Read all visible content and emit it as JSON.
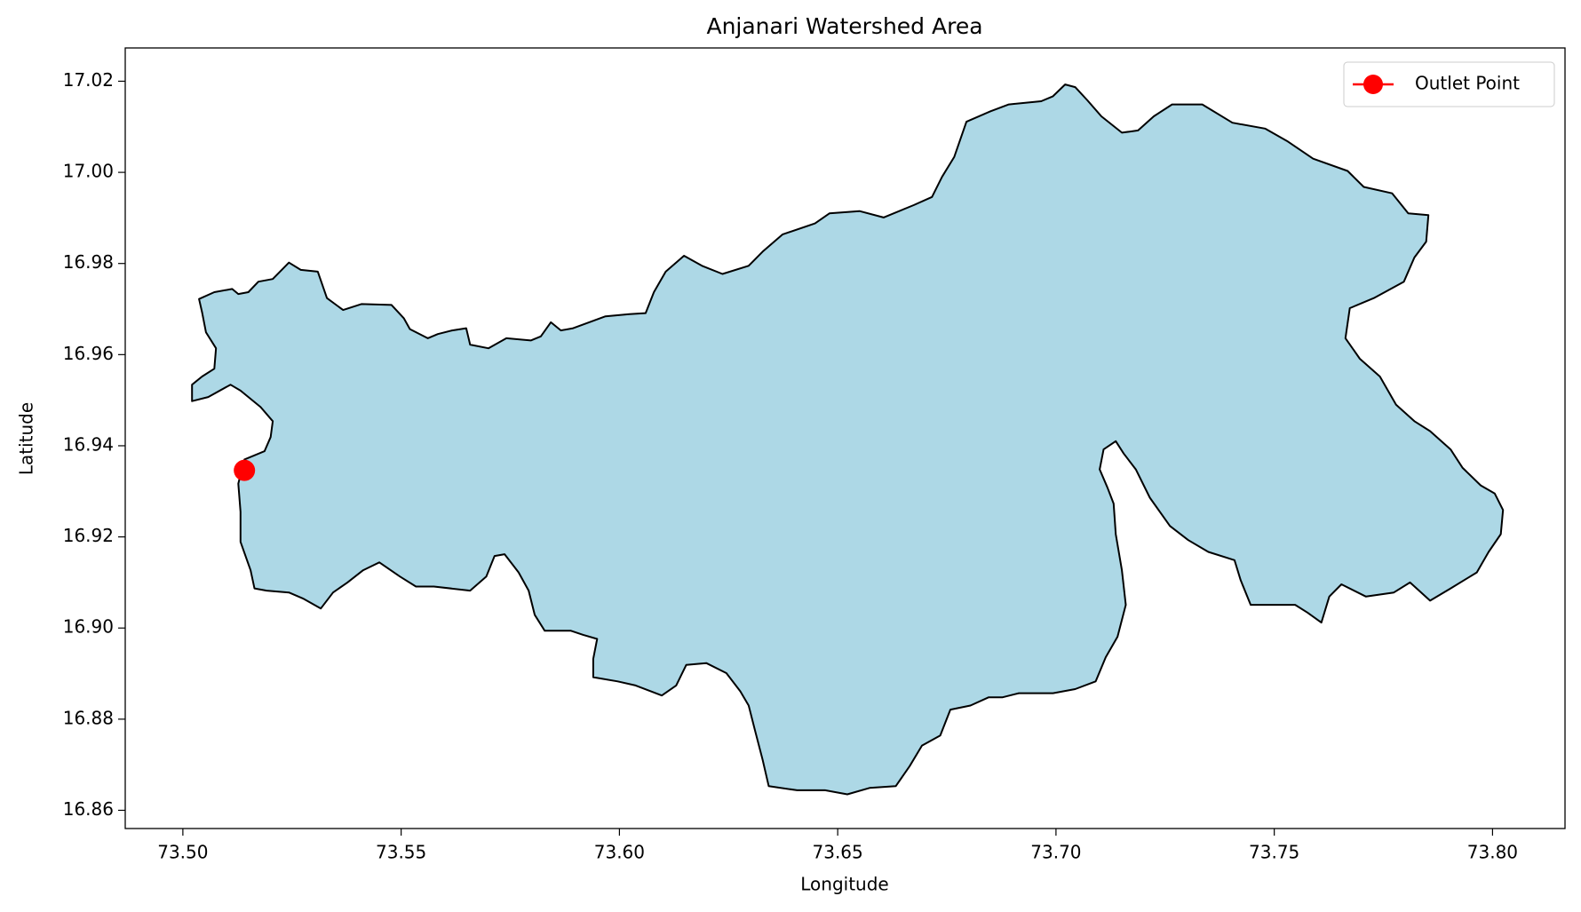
{
  "chart_data": {
    "type": "map",
    "title": "Anjanari Watershed Area",
    "xlabel": "Longitude",
    "ylabel": "Latitude",
    "xlim": [
      73.4868,
      73.8166
    ],
    "ylim": [
      16.856,
      17.0273
    ],
    "xticks": [
      {
        "value": 73.5,
        "label": "73.50"
      },
      73.55,
      {
        "value": 73.6,
        "label": "73.60"
      },
      73.65,
      {
        "value": 73.7,
        "label": "73.70"
      },
      73.75,
      {
        "value": 73.8,
        "label": "73.80"
      }
    ],
    "yticks": [
      16.86,
      16.88,
      {
        "value": 16.9,
        "label": "16.90"
      },
      16.92,
      16.94,
      16.96,
      16.98,
      {
        "value": 17.0,
        "label": "17.00"
      },
      17.02
    ],
    "grid": false,
    "legend": "upper right",
    "series": [
      {
        "type": "polygon",
        "color": "#add8e6",
        "edgecolor": "#000000",
        "x": [
          73.5037,
          73.5072,
          73.5113,
          73.5127,
          73.515,
          73.5173,
          73.5206,
          73.5243,
          73.527,
          73.5309,
          73.533,
          73.5367,
          73.5409,
          73.5478,
          73.5506,
          73.552,
          73.5561,
          73.5584,
          73.5617,
          73.5649,
          73.5658,
          73.57,
          73.5741,
          73.5797,
          73.582,
          73.5843,
          73.5866,
          73.5894,
          73.5968,
          73.6023,
          73.606,
          73.6079,
          73.6106,
          73.6148,
          73.6189,
          73.6236,
          73.6296,
          73.6328,
          73.6374,
          73.6448,
          73.6481,
          73.655,
          73.6605,
          73.6674,
          73.6716,
          73.6739,
          73.6767,
          73.6795,
          73.685,
          73.6892,
          73.6966,
          73.6993,
          73.7021,
          73.7044,
          73.7072,
          73.7104,
          73.7151,
          73.7188,
          73.7224,
          73.7266,
          73.7335,
          73.7404,
          73.7479,
          73.7529,
          73.7589,
          73.7668,
          73.7705,
          73.777,
          73.7807,
          73.7853,
          73.7848,
          73.7821,
          73.7797,
          73.7728,
          73.7673,
          73.7663,
          73.7696,
          73.7742,
          73.7779,
          73.7821,
          73.7857,
          73.7904,
          73.7931,
          73.7973,
          73.8005,
          73.8024,
          73.8019,
          73.7991,
          73.7964,
          73.7904,
          73.7857,
          73.7811,
          73.7774,
          73.771,
          73.7654,
          73.7626,
          73.7608,
          73.7576,
          73.7548,
          73.7446,
          73.7423,
          73.7409,
          73.7349,
          73.7303,
          73.7261,
          73.7215,
          73.7183,
          73.7155,
          73.7137,
          73.7109,
          73.71,
          73.7118,
          73.7132,
          73.7137,
          73.7151,
          73.716,
          73.7141,
          73.7114,
          73.7091,
          73.7044,
          73.6993,
          73.6915,
          73.6878,
          73.6846,
          73.6804,
          73.6758,
          73.6735,
          73.6693,
          73.6665,
          73.6633,
          73.6573,
          73.6522,
          73.6471,
          73.6407,
          73.6342,
          73.6328,
          73.631,
          73.6296,
          73.6277,
          73.6245,
          73.6199,
          73.6153,
          73.613,
          73.6097,
          73.6037,
          73.5996,
          73.594,
          73.594,
          73.5949,
          73.5917,
          73.5889,
          73.5829,
          73.5806,
          73.5792,
          73.5769,
          73.5737,
          73.5714,
          73.5695,
          73.5658,
          73.5575,
          73.5534,
          73.5497,
          73.545,
          73.5413,
          73.5377,
          73.5344,
          73.5316,
          73.5275,
          73.5243,
          73.5192,
          73.5164,
          73.5155,
          73.5132,
          73.5132,
          73.5127,
          73.5141,
          73.5187,
          73.5201,
          73.5206,
          73.5178,
          73.5132,
          73.5109,
          73.5058,
          73.5021,
          73.5021,
          73.5044,
          73.5072,
          73.5076,
          73.5053,
          73.5044
        ],
        "y": [
          16.9722,
          16.9737,
          16.9744,
          16.9733,
          16.9737,
          16.976,
          16.9766,
          16.9802,
          16.9786,
          16.9782,
          16.9724,
          16.9698,
          16.9711,
          16.9709,
          16.968,
          16.9656,
          16.9636,
          16.9645,
          16.9653,
          16.9658,
          16.9622,
          16.9614,
          16.9636,
          16.9631,
          16.964,
          16.9671,
          16.9653,
          16.9658,
          16.9684,
          16.9689,
          16.9691,
          16.9737,
          16.9782,
          16.9817,
          16.9795,
          16.9777,
          16.9795,
          16.9826,
          16.9864,
          16.9888,
          16.991,
          16.9915,
          16.9901,
          16.9928,
          16.9946,
          16.999,
          17.0034,
          17.0111,
          17.0134,
          17.0149,
          17.0156,
          17.0167,
          17.0193,
          17.0187,
          17.0158,
          17.0123,
          17.0087,
          17.0092,
          17.0123,
          17.0149,
          17.0149,
          17.0109,
          17.0096,
          17.0069,
          17.003,
          17.0003,
          16.9968,
          16.9954,
          16.991,
          16.9906,
          16.9848,
          16.9813,
          16.976,
          16.9724,
          16.9702,
          16.9636,
          16.9591,
          16.9552,
          16.949,
          16.9454,
          16.9432,
          16.9392,
          16.9352,
          16.9313,
          16.9295,
          16.9259,
          16.9206,
          16.9167,
          16.9122,
          16.9087,
          16.906,
          16.91,
          16.9078,
          16.9069,
          16.9096,
          16.9069,
          16.9012,
          16.9034,
          16.9051,
          16.9051,
          16.9105,
          16.9149,
          16.9167,
          16.9193,
          16.9224,
          16.9286,
          16.9348,
          16.9383,
          16.941,
          16.9392,
          16.9348,
          16.9308,
          16.9273,
          16.9206,
          16.9127,
          16.9051,
          16.8981,
          16.8936,
          16.8883,
          16.8866,
          16.8857,
          16.8857,
          16.8848,
          16.8848,
          16.883,
          16.8821,
          16.8764,
          16.8742,
          16.8697,
          16.8653,
          16.8649,
          16.8635,
          16.8644,
          16.8644,
          16.8653,
          16.8711,
          16.8777,
          16.883,
          16.8861,
          16.8901,
          16.8923,
          16.8919,
          16.8874,
          16.8852,
          16.8874,
          16.8883,
          16.8892,
          16.8932,
          16.8976,
          16.8985,
          16.8994,
          16.8994,
          16.9029,
          16.9082,
          16.9122,
          16.9162,
          16.9158,
          16.9113,
          16.9082,
          16.9091,
          16.9091,
          16.9113,
          16.9144,
          16.9127,
          16.91,
          16.9078,
          16.9043,
          16.9065,
          16.9078,
          16.9082,
          16.9087,
          16.9127,
          16.9189,
          16.9255,
          16.9317,
          16.937,
          16.9388,
          16.9419,
          16.9454,
          16.9485,
          16.9521,
          16.9534,
          16.9507,
          16.9498,
          16.9534,
          16.9552,
          16.9569,
          16.9614,
          16.9649,
          16.9693
        ]
      },
      {
        "type": "point",
        "name": "Outlet Point",
        "color": "#ff0000",
        "x": [
          73.5141
        ],
        "y": [
          16.9346
        ]
      }
    ]
  }
}
